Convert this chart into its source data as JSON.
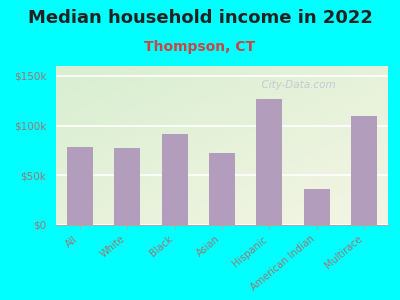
{
  "title": "Median household income in 2022",
  "subtitle": "Thompson, CT",
  "categories": [
    "All",
    "White",
    "Black",
    "Asian",
    "Hispanic",
    "American Indian",
    "Multirace"
  ],
  "values": [
    78000,
    77000,
    92000,
    72000,
    127000,
    36000,
    110000
  ],
  "bar_color": "#b39dbd",
  "title_fontsize": 13,
  "subtitle_fontsize": 10,
  "subtitle_color": "#cc4444",
  "tick_label_color": "#997777",
  "bg_outer": "#00ffff",
  "bg_plot_grad_tl": "#d8efd0",
  "bg_plot_grad_br": "#f5f5e5",
  "ylim": [
    0,
    160000
  ],
  "yticks": [
    0,
    50000,
    100000,
    150000
  ],
  "ytick_labels": [
    "$0",
    "$50k",
    "$100k",
    "$150k"
  ],
  "watermark": "  City-Data.com"
}
